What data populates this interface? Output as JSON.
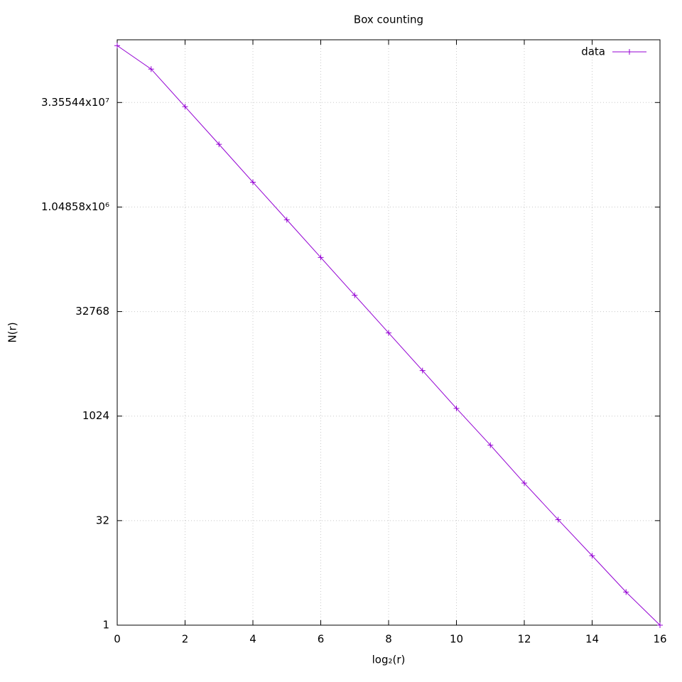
{
  "chart_data": {
    "type": "line",
    "title": "Box counting",
    "x_label": "log₂(r)",
    "y_label": "N(r)",
    "x": [
      0,
      1,
      2,
      3,
      4,
      5,
      6,
      7,
      8,
      9,
      10,
      11,
      12,
      13,
      14,
      15,
      16
    ],
    "series": [
      {
        "name": "data",
        "color": "#9400d3",
        "values": [
          221000000,
          101700000,
          29200000,
          8390000,
          2390000,
          687000,
          197000,
          56300,
          16160,
          4640,
          1323,
          391,
          111,
          33,
          10,
          3,
          1
        ]
      }
    ],
    "xlim": [
      0,
      16
    ],
    "xticks": [
      0,
      2,
      4,
      6,
      8,
      10,
      12,
      14,
      16
    ],
    "ylim": [
      1,
      268435456
    ],
    "yscale": "log",
    "yticks": [
      1,
      32,
      1024,
      32768,
      {
        "value": 1048576,
        "label": "1.04858x10⁶"
      },
      {
        "value": 33554432,
        "label": "3.35544x10⁷"
      }
    ],
    "grid": true,
    "legend": "top-right"
  }
}
